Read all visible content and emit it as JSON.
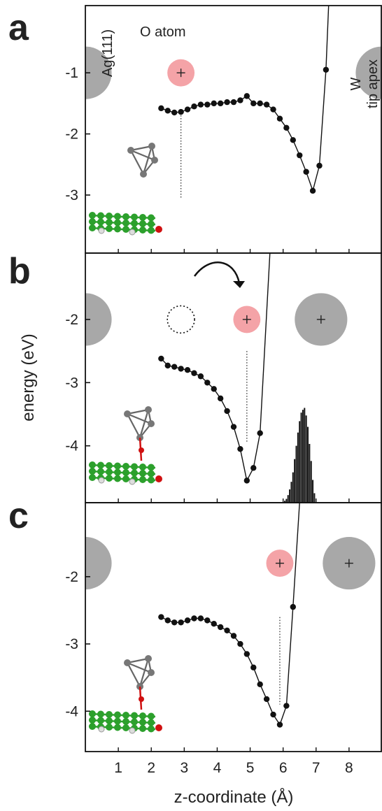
{
  "chart_data": [
    {
      "panel": "a",
      "type": "line",
      "xlim": [
        0,
        9
      ],
      "ylim": [
        -3.95,
        0.1
      ],
      "yticks": [
        -1,
        -2,
        -3
      ],
      "x": [
        2.3,
        2.5,
        2.7,
        2.9,
        3.1,
        3.3,
        3.5,
        3.7,
        3.9,
        4.1,
        4.3,
        4.5,
        4.7,
        4.9,
        5.1,
        5.3,
        5.5,
        5.7,
        5.9,
        6.1,
        6.3,
        6.5,
        6.7,
        6.9,
        7.1,
        7.3
      ],
      "y": [
        -1.58,
        -1.62,
        -1.65,
        -1.64,
        -1.6,
        -1.55,
        -1.52,
        -1.52,
        -1.5,
        -1.5,
        -1.48,
        -1.48,
        -1.45,
        -1.38,
        -1.5,
        -1.5,
        -1.52,
        -1.6,
        -1.75,
        -1.9,
        -2.1,
        -2.35,
        -2.62,
        -2.93,
        -2.52,
        -0.95
      ],
      "curve_end": [
        7.38,
        0.1
      ],
      "equilibrium_x": 2.9,
      "equilibrium_y_range": [
        -1.65,
        -3.05
      ],
      "annotations": {
        "surface_label": "Ag(111)",
        "atom_label": "O atom",
        "tip_label": "W\ntip apex"
      },
      "spheres": [
        {
          "kind": "surface",
          "cx": 0.0,
          "cy": -1.0,
          "r": 1.45,
          "color": "#a8a8a8",
          "cross": false
        },
        {
          "kind": "atom",
          "cx": 2.9,
          "cy": -1.0,
          "r": 0.75,
          "color": "#f4a3a7",
          "cross": true
        },
        {
          "kind": "tip",
          "cx": 9.0,
          "cy": -1.0,
          "r": 1.45,
          "color": "#a8a8a8",
          "cross": false
        }
      ]
    },
    {
      "panel": "b",
      "type": "line",
      "xlim": [
        0,
        9
      ],
      "ylim": [
        -4.9,
        -0.95
      ],
      "yticks": [
        -2,
        -3,
        -4
      ],
      "ylabel": "energy (eV)",
      "x": [
        2.3,
        2.5,
        2.7,
        2.9,
        3.1,
        3.3,
        3.5,
        3.7,
        3.9,
        4.1,
        4.3,
        4.5,
        4.7,
        4.9,
        5.1,
        5.3
      ],
      "y": [
        -2.62,
        -2.73,
        -2.75,
        -2.78,
        -2.8,
        -2.85,
        -2.9,
        -3.0,
        -3.1,
        -3.25,
        -3.45,
        -3.7,
        -4.05,
        -4.55,
        -4.35,
        -3.8
      ],
      "curve_end": [
        5.6,
        -0.95
      ],
      "equilibrium_x": 4.9,
      "equilibrium_y_range": [
        -2.5,
        -3.95
      ],
      "spheres": [
        {
          "kind": "surface",
          "cx": 0.0,
          "cy": -2.0,
          "r": 1.45,
          "color": "#a8a8a8",
          "cross": false
        },
        {
          "kind": "atom-old",
          "cx": 2.9,
          "cy": -2.0,
          "r": 0.75,
          "color": "none",
          "cross": false
        },
        {
          "kind": "atom",
          "cx": 4.9,
          "cy": -2.0,
          "r": 0.75,
          "color": "#f4a3a7",
          "cross": true
        },
        {
          "kind": "tip",
          "cx": 7.15,
          "cy": -2.0,
          "r": 1.45,
          "color": "#a8a8a8",
          "cross": true
        }
      ],
      "histogram": {
        "bins": [
          6.05,
          6.1,
          6.15,
          6.2,
          6.25,
          6.3,
          6.35,
          6.4,
          6.45,
          6.5,
          6.55,
          6.6,
          6.65,
          6.7,
          6.75,
          6.8,
          6.85,
          6.9,
          6.95
        ],
        "values": [
          0.02,
          0.04,
          0.08,
          0.14,
          0.22,
          0.32,
          0.46,
          0.6,
          0.74,
          0.86,
          0.95,
          0.98,
          1.0,
          0.92,
          0.8,
          0.62,
          0.44,
          0.24,
          0.1
        ],
        "max_height": 1.5,
        "baseline": -4.9
      }
    },
    {
      "panel": "c",
      "type": "line",
      "xlim": [
        0,
        9
      ],
      "ylim": [
        -4.6,
        -0.9
      ],
      "yticks": [
        -2,
        -3,
        -4
      ],
      "xticks": [
        1,
        2,
        3,
        4,
        5,
        6,
        7,
        8
      ],
      "xlabel": "z-coordinate (Å)",
      "x": [
        2.3,
        2.5,
        2.7,
        2.9,
        3.1,
        3.3,
        3.5,
        3.7,
        3.9,
        4.1,
        4.3,
        4.5,
        4.7,
        4.9,
        5.1,
        5.3,
        5.5,
        5.7,
        5.9,
        6.1,
        6.3
      ],
      "y": [
        -2.6,
        -2.65,
        -2.68,
        -2.68,
        -2.65,
        -2.62,
        -2.62,
        -2.65,
        -2.7,
        -2.75,
        -2.8,
        -2.88,
        -3.0,
        -3.15,
        -3.35,
        -3.6,
        -3.82,
        -4.05,
        -4.2,
        -3.92,
        -2.45
      ],
      "curve_end": [
        6.5,
        -0.9
      ],
      "equilibrium_x": 5.9,
      "equilibrium_y_range": [
        -2.6,
        -3.9
      ],
      "spheres": [
        {
          "kind": "surface",
          "cx": 0.0,
          "cy": -1.8,
          "r": 1.45,
          "color": "#a8a8a8",
          "cross": false
        },
        {
          "kind": "atom",
          "cx": 5.9,
          "cy": -1.8,
          "r": 0.75,
          "color": "#f4a3a7",
          "cross": true
        },
        {
          "kind": "tip",
          "cx": 8.0,
          "cy": -1.8,
          "r": 1.45,
          "color": "#a8a8a8",
          "cross": true
        }
      ]
    }
  ],
  "colors": {
    "sphere_gray": "#a8a8a8",
    "oxygen_pink": "#f4a3a7",
    "curve": "#111111",
    "carbon_green": "#2ca02c",
    "oxygen_red": "#d01010",
    "tip_gray": "#777777"
  }
}
